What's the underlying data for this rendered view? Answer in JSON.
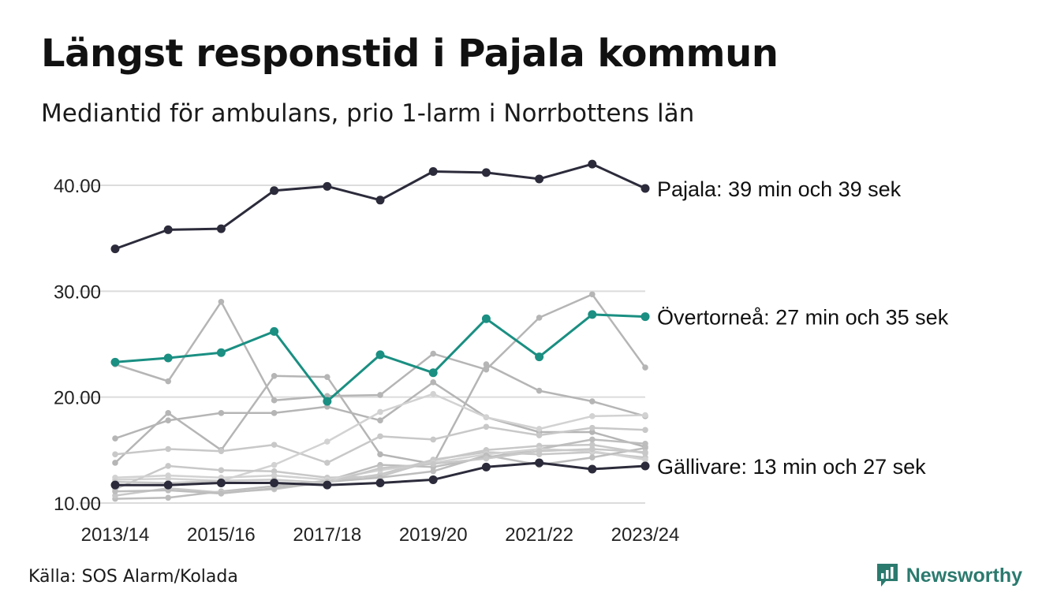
{
  "title": "Längst responstid i Pajala kommun",
  "subtitle": "Mediantid för ambulans, prio 1-larm i Norrbottens län",
  "source": "Källa: SOS Alarm/Kolada",
  "brand": {
    "name": "Newsworthy",
    "icon": "newsworthy-logo-icon",
    "color": "#2b7a6e"
  },
  "chart_data": {
    "type": "line",
    "x": [
      "2013/14",
      "2014/15",
      "2015/16",
      "2016/17",
      "2017/18",
      "2018/19",
      "2019/20",
      "2020/21",
      "2021/22",
      "2022/23",
      "2023/24"
    ],
    "x_tick_labels": [
      "2013/14",
      "2015/16",
      "2017/18",
      "2019/20",
      "2021/22",
      "2023/24"
    ],
    "y_ticks": [
      10,
      20,
      30,
      40
    ],
    "y_tick_labels": [
      "10.00",
      "20.00",
      "30.00",
      "40.00"
    ],
    "ylim": [
      10,
      42.5
    ],
    "grid": "horizontal",
    "highlighted": [
      {
        "name": "Pajala",
        "label": "Pajala: 39 min och 39 sek",
        "color": "#2b2b3b",
        "values": [
          34.0,
          35.8,
          35.9,
          39.5,
          39.9,
          38.6,
          41.3,
          41.2,
          40.6,
          42.0,
          39.7
        ]
      },
      {
        "name": "Övertorneå",
        "label": "Övertorneå: 27 min och 35 sek",
        "color": "#1a8f82",
        "values": [
          23.3,
          23.7,
          24.2,
          26.2,
          19.6,
          24.0,
          22.3,
          27.4,
          23.8,
          27.8,
          27.6
        ]
      },
      {
        "name": "Gällivare",
        "label": "Gällivare: 13 min och 27 sek",
        "color": "#2b2b3b",
        "values": [
          11.7,
          11.7,
          11.9,
          11.9,
          11.7,
          11.9,
          12.2,
          13.4,
          13.8,
          13.2,
          13.5
        ]
      }
    ],
    "background_series": [
      {
        "color": "#b5b5b5",
        "values": [
          23.1,
          21.5,
          29.0,
          19.7,
          20.1,
          20.2,
          24.1,
          22.6,
          27.5,
          29.7,
          22.8
        ]
      },
      {
        "color": "#b5b5b5",
        "values": [
          16.1,
          17.8,
          18.5,
          18.5,
          19.1,
          17.8,
          21.4,
          18.1,
          16.7,
          16.7,
          15.3
        ]
      },
      {
        "color": "#b5b5b5",
        "values": [
          13.8,
          18.5,
          15.0,
          22.0,
          21.9,
          14.6,
          13.7,
          23.1,
          20.6,
          19.6,
          18.2
        ]
      },
      {
        "color": "#c8c8c8",
        "values": [
          14.6,
          15.1,
          14.9,
          15.5,
          13.8,
          16.3,
          16.0,
          17.2,
          16.4,
          17.1,
          16.9
        ]
      },
      {
        "color": "#d2d2d2",
        "values": [
          12.2,
          12.3,
          12.1,
          13.6,
          15.8,
          18.6,
          20.3,
          18.1,
          17.0,
          18.2,
          18.3
        ]
      },
      {
        "color": "#c8c8c8",
        "values": [
          11.3,
          13.5,
          13.1,
          13.0,
          12.4,
          12.5,
          14.0,
          15.0,
          15.4,
          15.5,
          14.7
        ]
      },
      {
        "color": "#bdbdbd",
        "values": [
          10.4,
          10.5,
          11.1,
          11.6,
          12.1,
          13.6,
          13.4,
          14.3,
          15.1,
          16.0,
          15.6
        ]
      },
      {
        "color": "#c8c8c8",
        "values": [
          10.7,
          11.4,
          11.0,
          11.3,
          12.0,
          12.7,
          14.1,
          14.8,
          14.6,
          14.8,
          14.3
        ]
      },
      {
        "color": "#d2d2d2",
        "values": [
          12.4,
          12.6,
          12.4,
          12.6,
          12.2,
          13.1,
          13.8,
          14.6,
          15.1,
          14.9,
          14.1
        ]
      },
      {
        "color": "#bdbdbd",
        "values": [
          11.1,
          11.2,
          10.9,
          11.4,
          12.0,
          12.4,
          13.0,
          14.5,
          13.6,
          14.3,
          15.2
        ]
      },
      {
        "color": "#c8c8c8",
        "values": [
          12.0,
          11.9,
          12.1,
          12.2,
          11.9,
          13.3,
          13.7,
          14.2,
          14.9,
          15.1,
          14.8
        ]
      }
    ]
  }
}
